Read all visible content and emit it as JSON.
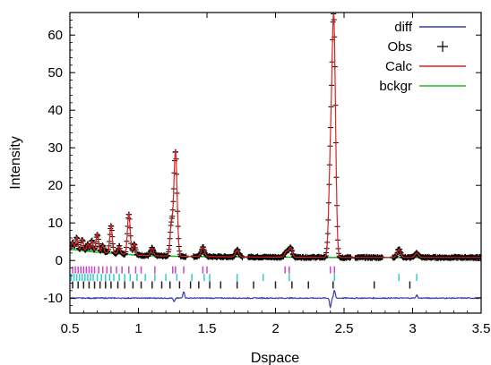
{
  "chart_data": {
    "type": "line",
    "title": "",
    "xlabel": "Dspace",
    "ylabel": "Intensity",
    "xlim": [
      0.5,
      3.5
    ],
    "ylim": [
      -14,
      66
    ],
    "x_ticks": [
      0.5,
      1,
      1.5,
      2,
      2.5,
      3,
      3.5
    ],
    "x_tick_labels": [
      "0.5",
      "1",
      "1.5",
      "2",
      "2.5",
      "3",
      "3.5"
    ],
    "y_ticks": [
      -10,
      0,
      10,
      20,
      30,
      40,
      50,
      60
    ],
    "y_tick_labels": [
      "-10",
      "0",
      "10",
      "20",
      "30",
      "40",
      "50",
      "60"
    ],
    "grid": false,
    "legend_position": "top-right",
    "legend": [
      {
        "label": "diff",
        "key": "diff",
        "color": "#3a3aa8",
        "style": "line"
      },
      {
        "label": "Obs",
        "key": "obs",
        "color": "#000000",
        "style": "plus"
      },
      {
        "label": "Calc",
        "key": "calc",
        "color": "#dd2222",
        "style": "line"
      },
      {
        "label": "bckgr",
        "key": "bckgr",
        "color": "#22bb22",
        "style": "line"
      }
    ],
    "background": {
      "x": [
        0.5,
        0.7,
        1.0,
        1.3,
        1.6,
        2.0,
        2.5,
        3.0,
        3.5
      ],
      "y": [
        3.0,
        2.2,
        1.4,
        1.1,
        1.0,
        0.9,
        0.8,
        0.8,
        0.8
      ]
    },
    "peaks": [
      {
        "x": 0.52,
        "height": 2.0,
        "width": 0.008
      },
      {
        "x": 0.55,
        "height": 3.5,
        "width": 0.008
      },
      {
        "x": 0.59,
        "height": 3.0,
        "width": 0.008
      },
      {
        "x": 0.63,
        "height": 2.0,
        "width": 0.008
      },
      {
        "x": 0.66,
        "height": 3.0,
        "width": 0.008
      },
      {
        "x": 0.7,
        "height": 5.0,
        "width": 0.009
      },
      {
        "x": 0.74,
        "height": 2.0,
        "width": 0.008
      },
      {
        "x": 0.8,
        "height": 7.5,
        "width": 0.009
      },
      {
        "x": 0.86,
        "height": 2.0,
        "width": 0.008
      },
      {
        "x": 0.93,
        "height": 11.0,
        "width": 0.01
      },
      {
        "x": 0.97,
        "height": 3.0,
        "width": 0.009
      },
      {
        "x": 1.1,
        "height": 2.0,
        "width": 0.01
      },
      {
        "x": 1.24,
        "height": 8.0,
        "width": 0.01
      },
      {
        "x": 1.27,
        "height": 28.0,
        "width": 0.012
      },
      {
        "x": 1.47,
        "height": 2.5,
        "width": 0.012
      },
      {
        "x": 1.72,
        "height": 1.8,
        "width": 0.012
      },
      {
        "x": 2.08,
        "height": 1.5,
        "width": 0.012
      },
      {
        "x": 2.11,
        "height": 2.5,
        "width": 0.012
      },
      {
        "x": 2.4,
        "height": 22.0,
        "width": 0.012
      },
      {
        "x": 2.425,
        "height": 62.0,
        "width": 0.013
      },
      {
        "x": 2.9,
        "height": 2.2,
        "width": 0.013
      },
      {
        "x": 3.03,
        "height": 1.2,
        "width": 0.013
      }
    ],
    "diff_offset": -10,
    "diff_features": [
      {
        "x": 1.26,
        "amp": -1.0
      },
      {
        "x": 1.33,
        "amp": 1.8
      },
      {
        "x": 2.4,
        "amp": -2.4
      },
      {
        "x": 2.43,
        "amp": 2.0
      },
      {
        "x": 3.03,
        "amp": 0.8
      }
    ],
    "data_gaps": [
      [
        1.35,
        1.4
      ],
      [
        1.76,
        1.8
      ],
      [
        2.55,
        2.58
      ],
      [
        2.78,
        2.85
      ]
    ],
    "phase_tick_rows": [
      {
        "color": "#cc44cc",
        "y": -2.5,
        "positions": [
          0.52,
          0.54,
          0.56,
          0.58,
          0.6,
          0.62,
          0.64,
          0.66,
          0.68,
          0.71,
          0.74,
          0.77,
          0.8,
          0.84,
          0.88,
          0.93,
          0.98,
          1.02,
          1.12,
          1.25,
          1.27,
          1.33,
          1.47,
          1.5,
          2.07,
          2.1,
          2.4,
          2.43
        ]
      },
      {
        "color": "#33cccc",
        "y": -4.5,
        "positions": [
          0.51,
          0.53,
          0.55,
          0.57,
          0.59,
          0.61,
          0.63,
          0.65,
          0.67,
          0.7,
          0.73,
          0.76,
          0.79,
          0.82,
          0.86,
          0.9,
          0.94,
          0.99,
          1.05,
          1.12,
          1.2,
          1.28,
          1.39,
          1.48,
          1.52,
          1.72,
          1.91,
          2.1,
          2.43,
          2.9,
          3.03
        ]
      },
      {
        "color": "#222222",
        "y": -6.5,
        "positions": [
          0.52,
          0.56,
          0.6,
          0.64,
          0.68,
          0.72,
          0.76,
          0.8,
          0.85,
          0.9,
          0.96,
          1.02,
          1.1,
          1.17,
          1.23,
          1.3,
          1.38,
          1.44,
          1.52,
          1.6,
          1.72,
          1.84,
          2.0,
          2.12,
          2.24,
          2.42,
          2.72,
          2.98
        ]
      }
    ]
  }
}
